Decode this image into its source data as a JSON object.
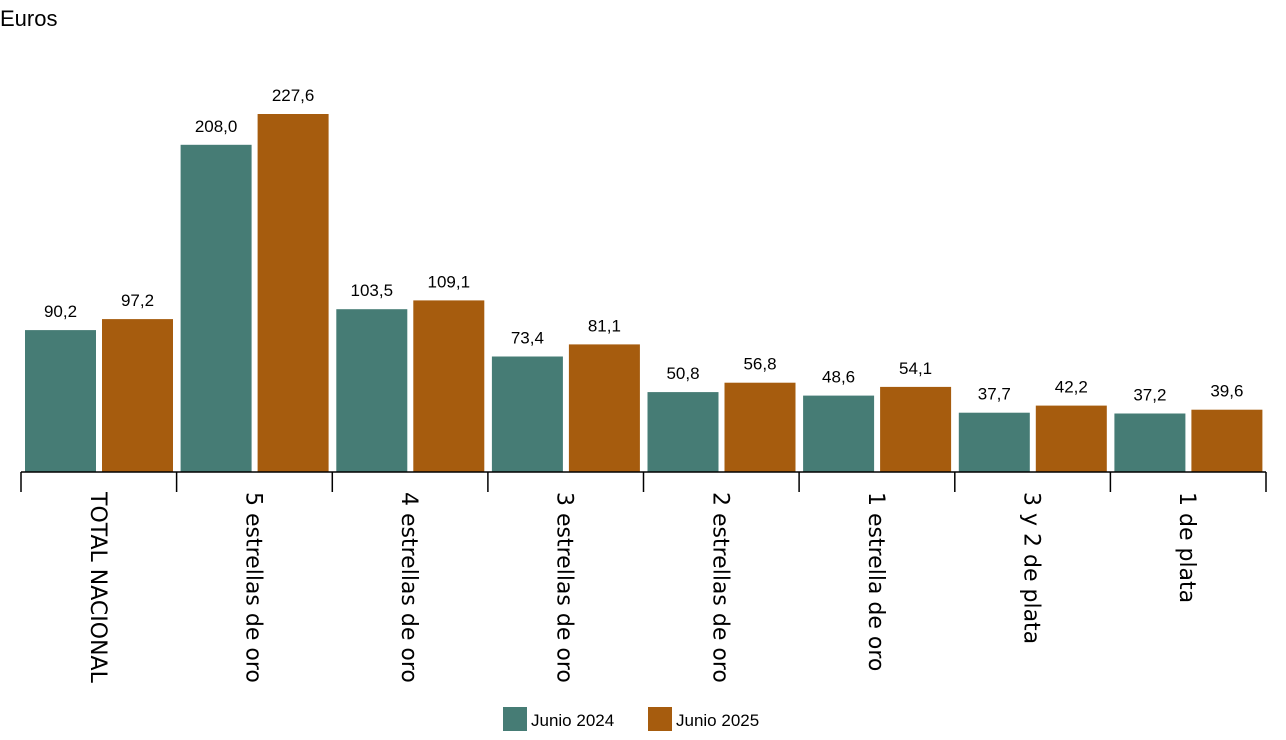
{
  "chart_data": {
    "type": "bar",
    "unit_label": "Euros",
    "categories": [
      "TOTAL NACIONAL",
      "5 estrellas de oro",
      "4 estrellas de oro",
      "3 estrellas de oro",
      "2 estrellas de oro",
      "1 estrella de oro",
      "3 y 2 de plata",
      "1 de plata"
    ],
    "series": [
      {
        "name": "Junio 2024",
        "color": "#467c75",
        "values": [
          90.2,
          208.0,
          103.5,
          73.4,
          50.8,
          48.6,
          37.7,
          37.2
        ],
        "labels": [
          "90,2",
          "208,0",
          "103,5",
          "73,4",
          "50,8",
          "48,6",
          "37,7",
          "37,2"
        ]
      },
      {
        "name": "Junio 2025",
        "color": "#a65c0e",
        "values": [
          97.2,
          227.6,
          109.1,
          81.1,
          56.8,
          54.1,
          42.2,
          39.6
        ],
        "labels": [
          "97,2",
          "227,6",
          "109,1",
          "81,1",
          "56,8",
          "54,1",
          "42,2",
          "39,6"
        ]
      }
    ],
    "ylim": [
      0,
      227.6
    ],
    "grid": false,
    "legend_position": "bottom-center",
    "xlabel": "",
    "ylabel": ""
  }
}
